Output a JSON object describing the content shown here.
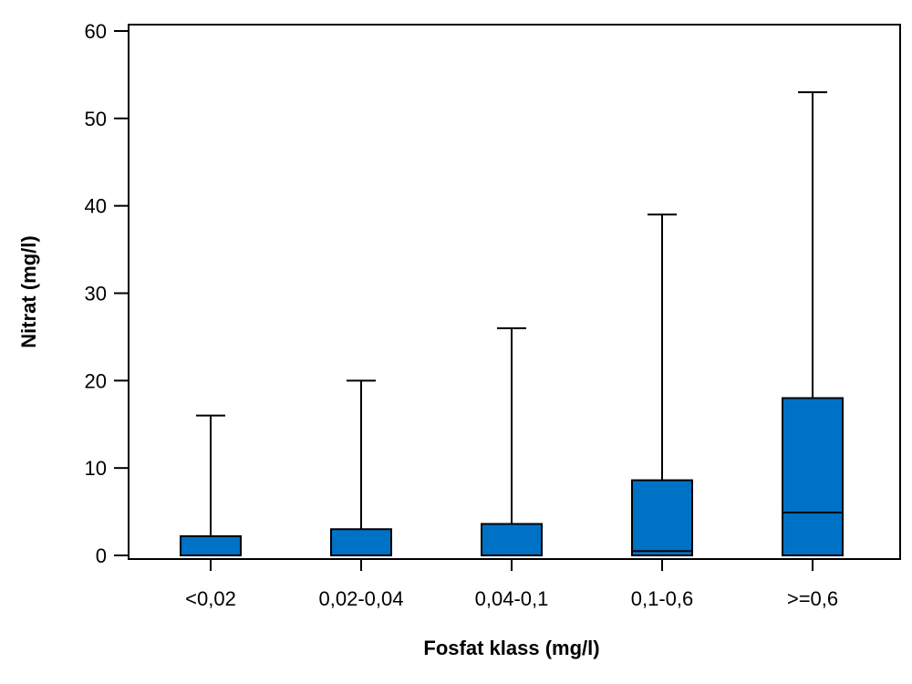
{
  "chart_data": {
    "type": "boxplot",
    "xlabel": "Fosfat klass (mg/l)",
    "ylabel": "Nitrat (mg/l)",
    "ylim": [
      0,
      60
    ],
    "yticks": [
      "0",
      "10",
      "20",
      "30",
      "40",
      "50",
      "60"
    ],
    "ytick_values": [
      0,
      10,
      20,
      30,
      40,
      50,
      60
    ],
    "categories": [
      "<0,02",
      "0,02-0,04",
      "0,04-0,1",
      "0,1-0,6",
      ">=0,6"
    ],
    "boxes": [
      {
        "min": 0,
        "q1": 0,
        "median": 0,
        "q3": 2.2,
        "max": 16
      },
      {
        "min": 0,
        "q1": 0,
        "median": 0,
        "q3": 3.0,
        "max": 20
      },
      {
        "min": 0,
        "q1": 0,
        "median": 0,
        "q3": 3.6,
        "max": 26
      },
      {
        "min": 0,
        "q1": 0,
        "median": 0.5,
        "q3": 8.6,
        "max": 39
      },
      {
        "min": 0,
        "q1": 0,
        "median": 4.9,
        "q3": 18.0,
        "max": 53
      }
    ],
    "box_color": "#0072C6",
    "grid": false,
    "legend": "none"
  }
}
